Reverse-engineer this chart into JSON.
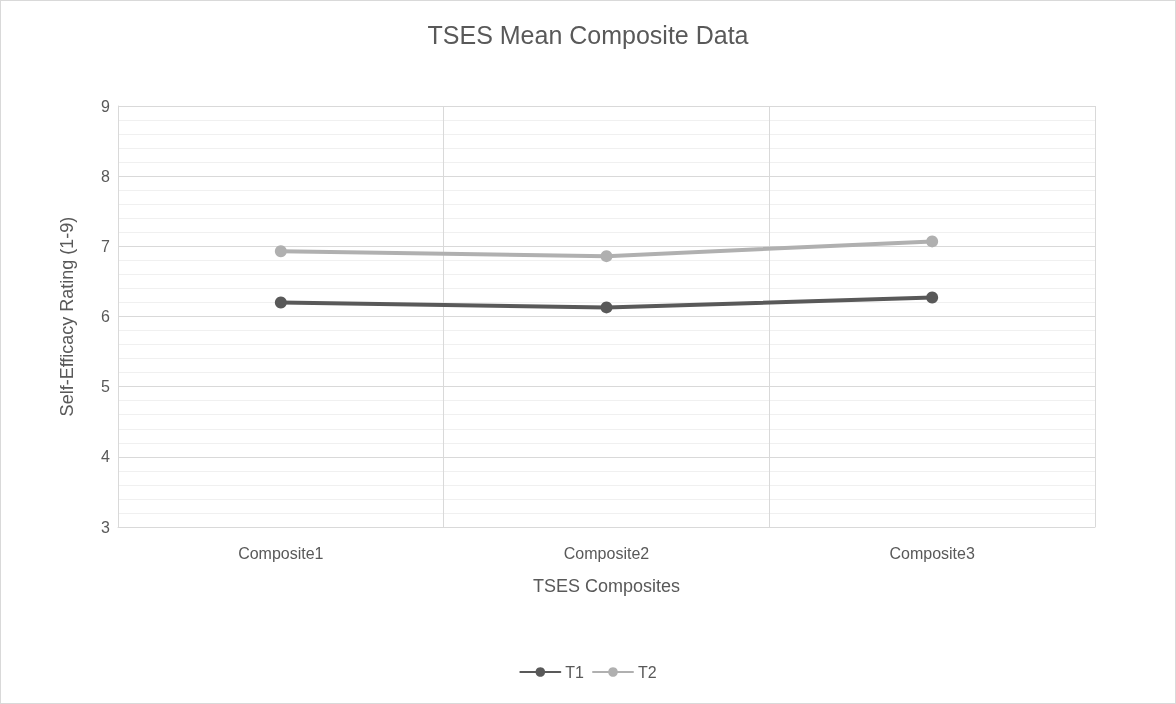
{
  "chart_data": {
    "type": "line",
    "title": "TSES Mean Composite Data",
    "xlabel": "TSES Composites",
    "ylabel": "Self-Efficacy Rating (1-9)",
    "categories": [
      "Composite1",
      "Composite2",
      "Composite3"
    ],
    "series": [
      {
        "name": "T1",
        "color": "#595959",
        "values": [
          6.2,
          6.13,
          6.27
        ]
      },
      {
        "name": "T2",
        "color": "#b0b0b0",
        "values": [
          6.93,
          6.86,
          7.07
        ]
      }
    ],
    "ylim": [
      3,
      9
    ],
    "yticks": [
      3,
      4,
      5,
      6,
      7,
      8,
      9
    ],
    "grid": true,
    "legend": "bottom",
    "marker": "circle",
    "line_style": "solid"
  }
}
